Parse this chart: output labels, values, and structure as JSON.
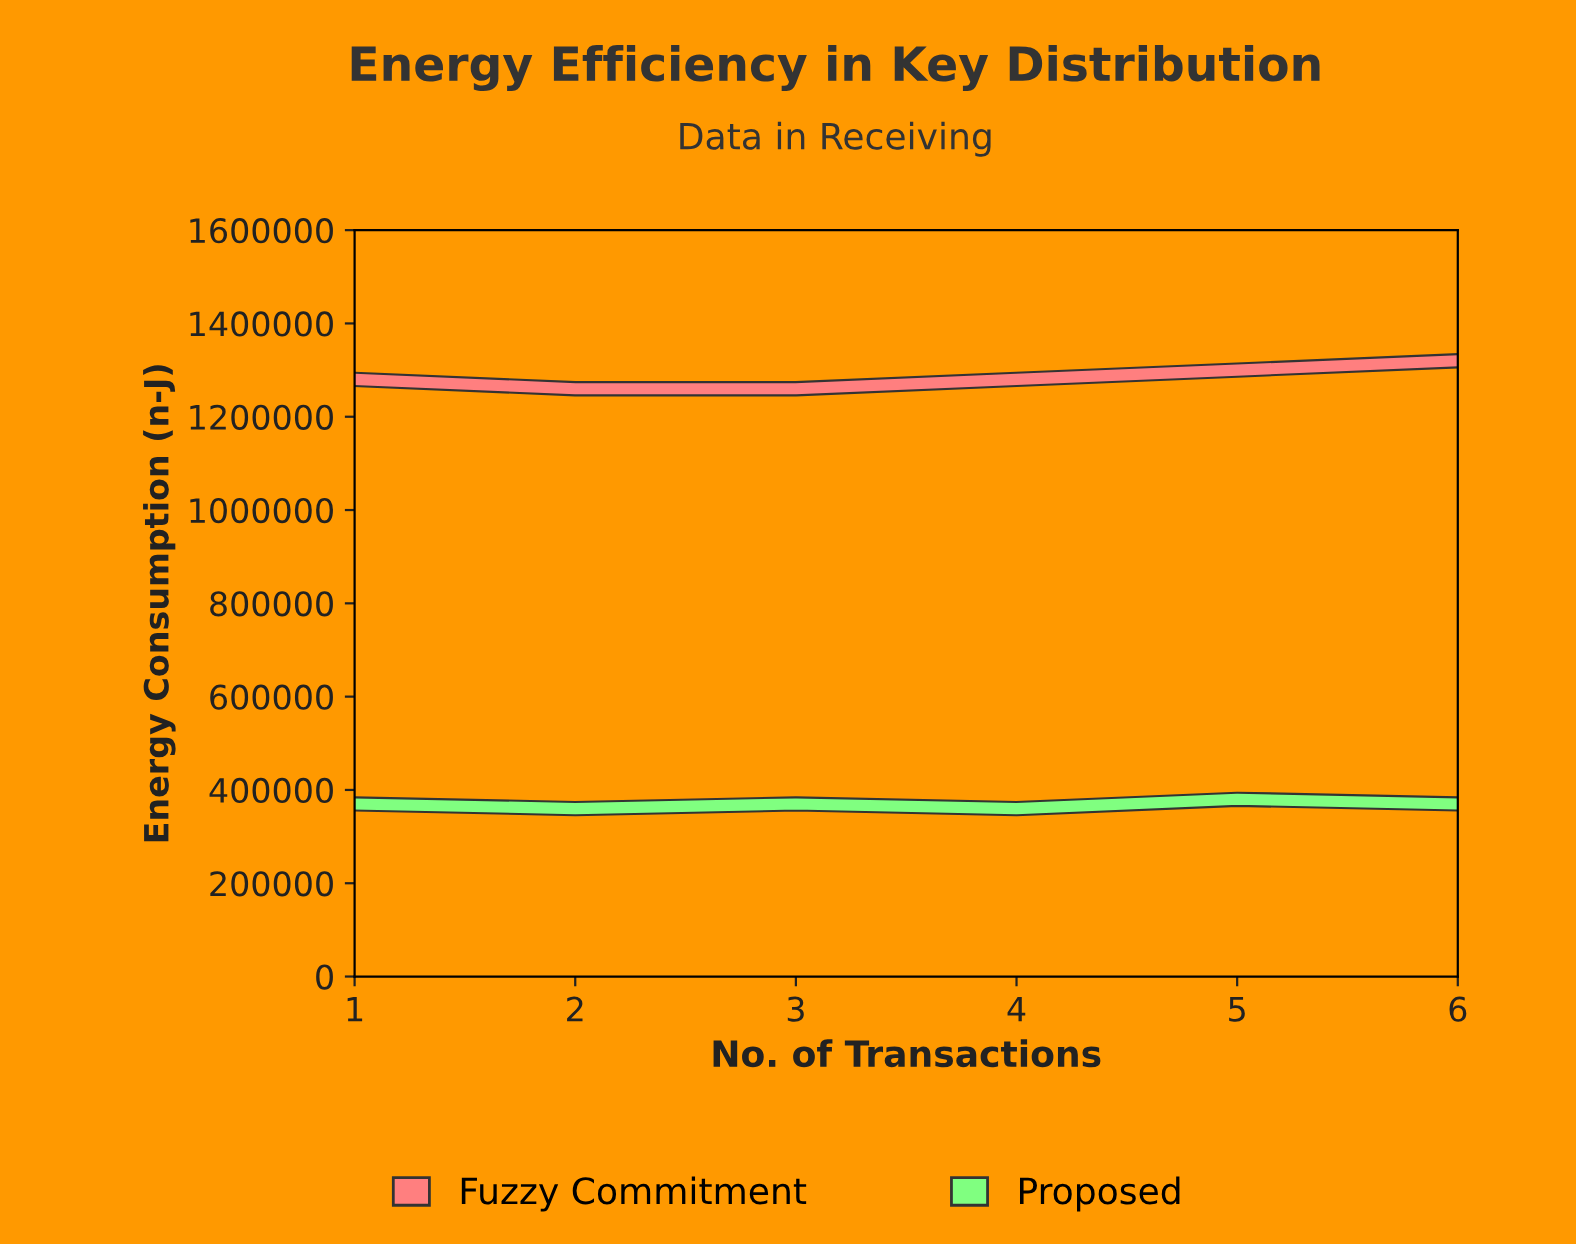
{
  "chart_data": {
    "type": "line",
    "title": "Energy Efficiency in Key Distribution",
    "subtitle": "Data in Receiving",
    "xlabel": "No. of Transactions",
    "ylabel": "Energy Consumption (n-J)",
    "x": [
      1,
      2,
      3,
      4,
      5,
      6
    ],
    "series": [
      {
        "name": "Fuzzy Commitment",
        "color": "#ff7f7f",
        "values": [
          1280000,
          1260000,
          1260000,
          1280000,
          1300000,
          1320000
        ]
      },
      {
        "name": "Proposed",
        "color": "#80ff80",
        "values": [
          370000,
          360000,
          370000,
          360000,
          380000,
          370000
        ]
      }
    ],
    "xlim": [
      1,
      6
    ],
    "xticks": [
      1,
      2,
      3,
      4,
      5,
      6
    ],
    "ylim": [
      0,
      1600000
    ],
    "yticks": [
      0,
      200000,
      400000,
      600000,
      800000,
      1000000,
      1200000,
      1400000,
      1600000
    ],
    "grid": false,
    "legend": "bottom",
    "marker": "none",
    "line_style": "solid"
  }
}
